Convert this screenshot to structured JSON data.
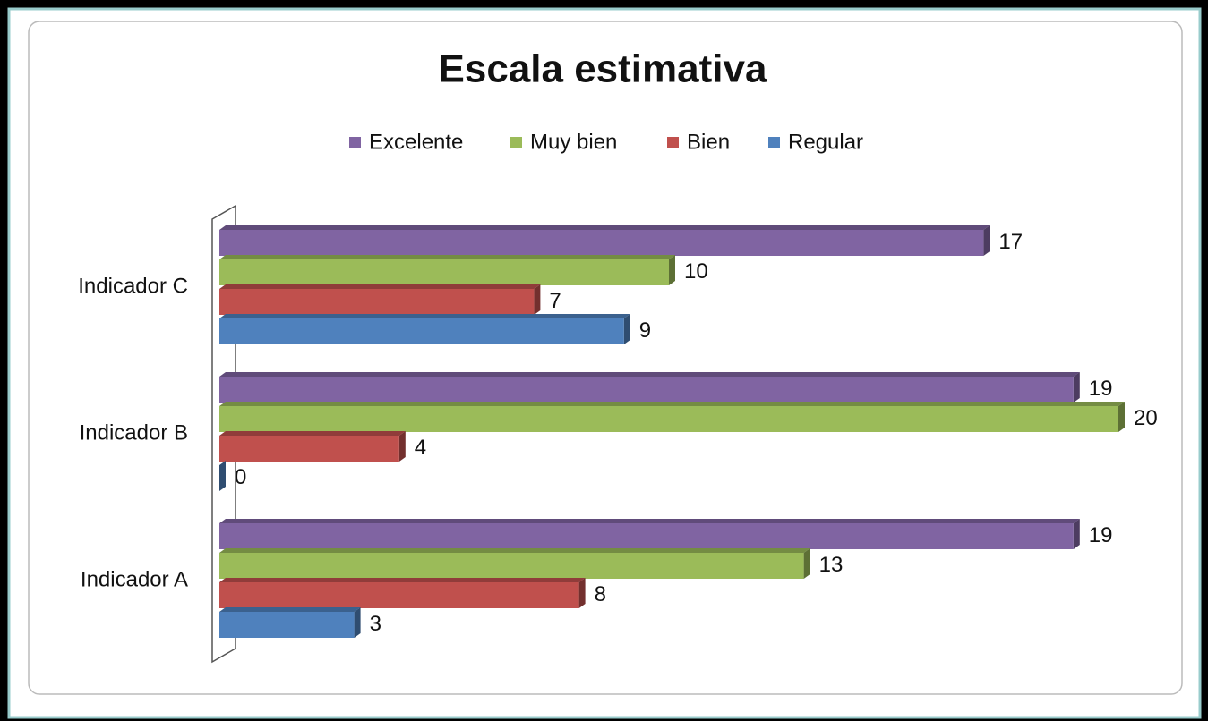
{
  "chart_data": {
    "type": "bar",
    "orientation": "horizontal",
    "title": "Escala estimativa",
    "categories": [
      "Indicador A",
      "Indicador B",
      "Indicador C"
    ],
    "series": [
      {
        "name": "Excelente",
        "color": "#8064a2",
        "values": [
          19,
          19,
          17
        ]
      },
      {
        "name": "Muy bien",
        "color": "#9bbb59",
        "values": [
          13,
          20,
          10
        ]
      },
      {
        "name": "Bien",
        "color": "#c0504d",
        "values": [
          8,
          4,
          7
        ]
      },
      {
        "name": "Regular",
        "color": "#4f81bd",
        "values": [
          3,
          0,
          9
        ]
      }
    ],
    "xlim": [
      0,
      20
    ],
    "legend": "top"
  }
}
